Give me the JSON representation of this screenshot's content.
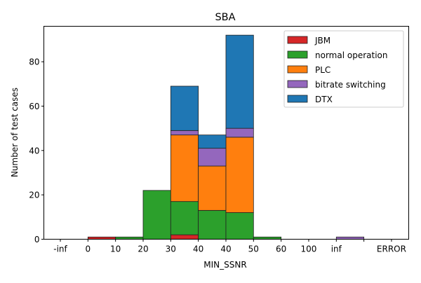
{
  "chart_data": {
    "type": "bar",
    "stacked": true,
    "title": "SBA",
    "xlabel": "MIN_SSNR",
    "ylabel": "Number of test cases",
    "x_tick_labels": [
      "-inf",
      "0",
      "10",
      "20",
      "30",
      "40",
      "40",
      "50",
      "60",
      "100",
      "inf",
      "",
      "ERROR"
    ],
    "bins": [
      "[-inf,0)",
      "[0,10)",
      "[10,20)",
      "[20,30)",
      "[30,40)",
      "[40,40)",
      "[40,50)",
      "[50,60)",
      "[60,100)",
      "[100,inf)",
      "[inf,?)",
      "[?,ERROR)"
    ],
    "ylim": [
      0,
      96
    ],
    "y_ticks": [
      0,
      20,
      40,
      60,
      80
    ],
    "legend_position": "top-right",
    "series": [
      {
        "name": "JBM",
        "color": "#d62728",
        "values": [
          0,
          1,
          0,
          0,
          2,
          0,
          0,
          0,
          0,
          0,
          0,
          0
        ]
      },
      {
        "name": "normal operation",
        "color": "#2ca02c",
        "values": [
          0,
          0,
          1,
          22,
          15,
          13,
          12,
          1,
          0,
          0,
          0,
          0
        ]
      },
      {
        "name": "PLC",
        "color": "#ff7f0e",
        "values": [
          0,
          0,
          0,
          0,
          30,
          20,
          34,
          0,
          0,
          0,
          0,
          0
        ]
      },
      {
        "name": "bitrate switching",
        "color": "#9467bd",
        "values": [
          0,
          0,
          0,
          0,
          2,
          8,
          4,
          0,
          0,
          0,
          1,
          0
        ]
      },
      {
        "name": "DTX",
        "color": "#1f77b4",
        "values": [
          0,
          0,
          0,
          0,
          20,
          6,
          42,
          0,
          0,
          0,
          0,
          0
        ]
      }
    ]
  }
}
